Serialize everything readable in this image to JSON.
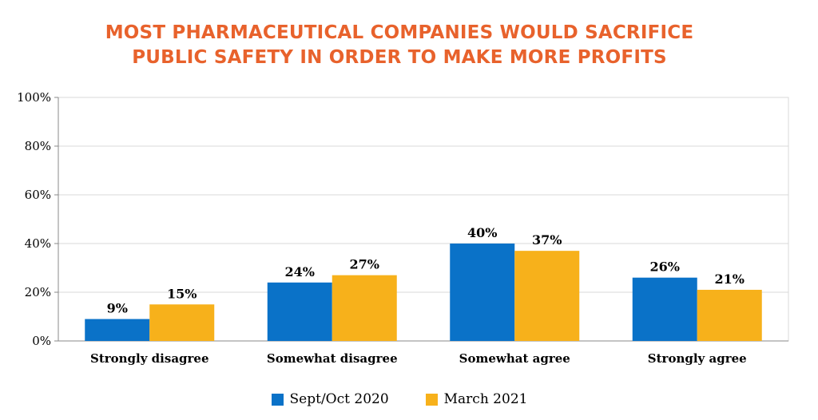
{
  "colors": {
    "title": "#e8622c",
    "series1": "#0a72c8",
    "series2": "#f7b11b",
    "grid": "#d9d9d9",
    "axis": "#888888"
  },
  "chart_data": {
    "type": "bar",
    "title": [
      "MOST PHARMACEUTICAL COMPANIES WOULD SACRIFICE",
      "PUBLIC SAFETY IN ORDER TO MAKE MORE PROFITS"
    ],
    "categories": [
      "Strongly disagree",
      "Somewhat disagree",
      "Somewhat agree",
      "Strongly agree"
    ],
    "series": [
      {
        "name": "Sept/Oct 2020",
        "values": [
          9,
          24,
          40,
          26
        ],
        "labels": [
          "9%",
          "24%",
          "40%",
          "26%"
        ]
      },
      {
        "name": "March 2021",
        "values": [
          15,
          27,
          37,
          21
        ],
        "labels": [
          "15%",
          "27%",
          "37%",
          "21%"
        ]
      }
    ],
    "ylim": [
      0,
      100
    ],
    "yticks": [
      0,
      20,
      40,
      60,
      80,
      100
    ],
    "ytick_labels": [
      "0%",
      "20%",
      "40%",
      "60%",
      "80%",
      "100%"
    ],
    "grid": true,
    "legend_position": "bottom"
  }
}
